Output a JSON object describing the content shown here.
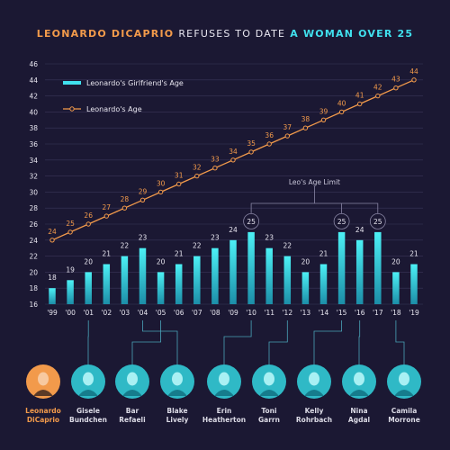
{
  "title": {
    "part1": "LEONARDO DICAPRIO",
    "part2": "REFUSES TO DATE",
    "part3": "A WOMAN OVER 25"
  },
  "colors": {
    "background": "#1b1833",
    "leo": "#f29a4b",
    "girlfriend": "#40e0ee",
    "grid": "#3a3658",
    "text": "#e8e6f0"
  },
  "chart_data": {
    "type": "bar",
    "categories": [
      "'99",
      "'00",
      "'01",
      "'02",
      "'03",
      "'04",
      "'05",
      "'06",
      "'07",
      "'08",
      "'09",
      "'10",
      "'11",
      "'12",
      "'13",
      "'14",
      "'15",
      "'16",
      "'17",
      "'18",
      "'19"
    ],
    "series": [
      {
        "name": "Leonardo's Girlfriend's Age",
        "type": "bar",
        "values": [
          18,
          19,
          20,
          21,
          22,
          23,
          20,
          21,
          22,
          23,
          24,
          25,
          23,
          22,
          20,
          21,
          25,
          24,
          25,
          20,
          21
        ]
      },
      {
        "name": "Leonardo's Age",
        "type": "line",
        "values": [
          24,
          25,
          26,
          27,
          28,
          29,
          30,
          31,
          32,
          33,
          34,
          35,
          36,
          37,
          38,
          39,
          40,
          41,
          42,
          43,
          44
        ]
      }
    ],
    "ylim": [
      16,
      46
    ],
    "yticks": [
      16,
      18,
      20,
      22,
      24,
      26,
      28,
      30,
      32,
      34,
      36,
      38,
      40,
      42,
      44,
      46
    ],
    "grid": true,
    "legend_position": "top-left",
    "highlighted": [
      11,
      16,
      18
    ],
    "annotation": "Leo's Age Limit"
  },
  "girlfriends": [
    {
      "name": "Leonardo DiCaprio",
      "year_index": null,
      "is_leo": true
    },
    {
      "name": "Gisele Bundchen",
      "year_index": 2
    },
    {
      "name": "Bar Refaeli",
      "year_index": 6
    },
    {
      "name": "Blake Lively",
      "year_index": 5
    },
    {
      "name": "Erin Heatherton",
      "year_index": 11
    },
    {
      "name": "Toni Garrn",
      "year_index": 13
    },
    {
      "name": "Kelly Rohrbach",
      "year_index": 16
    },
    {
      "name": "Nina Agdal",
      "year_index": 17
    },
    {
      "name": "Camila Morrone",
      "year_index": 19
    }
  ]
}
